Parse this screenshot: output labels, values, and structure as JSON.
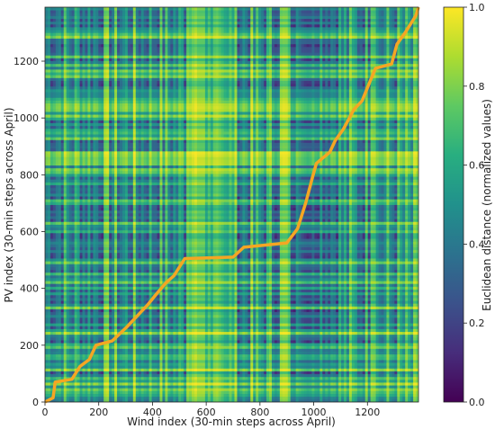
{
  "chart_data": {
    "type": "heatmap",
    "title": "",
    "xlabel": "Wind index (30-min steps across April)",
    "ylabel": "PV index (30-min steps across April)",
    "xlim": [
      0,
      1390
    ],
    "ylim": [
      0,
      1390
    ],
    "x_ticks": [
      0,
      200,
      400,
      600,
      800,
      1000,
      1200
    ],
    "y_ticks": [
      0,
      200,
      400,
      600,
      800,
      1000,
      1200
    ],
    "colormap": "viridis",
    "colorbar": {
      "label": "Euclidean distance (normalized values)",
      "range": [
        0.0,
        1.0
      ],
      "ticks": [
        "0.0",
        "0.2",
        "0.4",
        "0.6",
        "0.8",
        "1.0"
      ]
    },
    "warping_path": {
      "color": "#f5a623",
      "points": [
        [
          0,
          0
        ],
        [
          30,
          15
        ],
        [
          38,
          70
        ],
        [
          100,
          80
        ],
        [
          130,
          125
        ],
        [
          165,
          150
        ],
        [
          190,
          200
        ],
        [
          250,
          215
        ],
        [
          300,
          260
        ],
        [
          340,
          300
        ],
        [
          380,
          340
        ],
        [
          410,
          375
        ],
        [
          450,
          420
        ],
        [
          480,
          445
        ],
        [
          520,
          505
        ],
        [
          700,
          510
        ],
        [
          740,
          545
        ],
        [
          900,
          560
        ],
        [
          940,
          610
        ],
        [
          970,
          700
        ],
        [
          995,
          790
        ],
        [
          1010,
          840
        ],
        [
          1060,
          880
        ],
        [
          1080,
          920
        ],
        [
          1110,
          960
        ],
        [
          1150,
          1030
        ],
        [
          1180,
          1060
        ],
        [
          1210,
          1130
        ],
        [
          1230,
          1175
        ],
        [
          1290,
          1190
        ],
        [
          1310,
          1260
        ],
        [
          1340,
          1300
        ],
        [
          1380,
          1360
        ],
        [
          1390,
          1390
        ]
      ]
    }
  }
}
